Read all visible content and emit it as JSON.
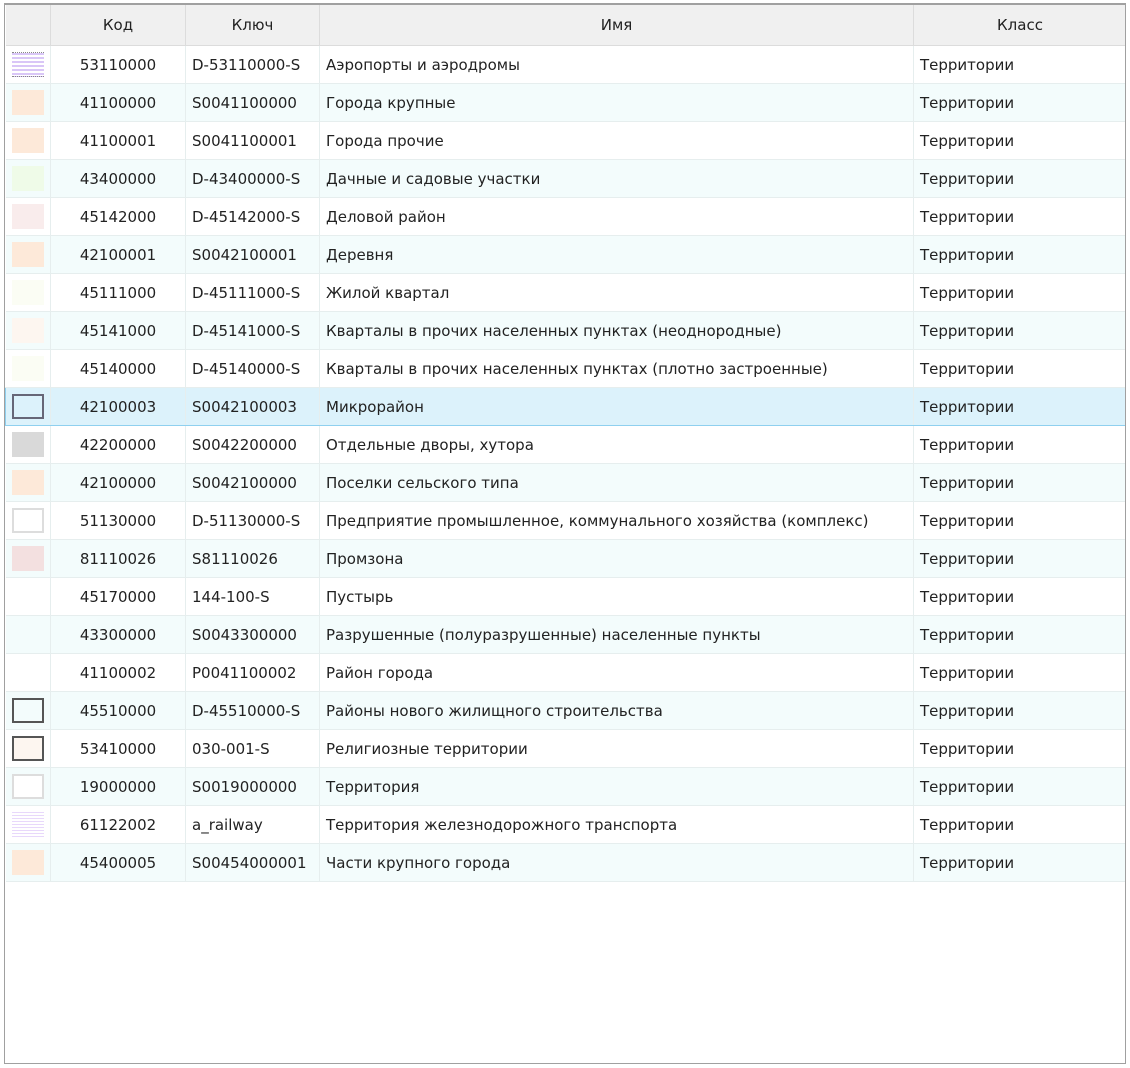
{
  "columns": [
    "",
    "Код",
    "Ключ",
    "Имя",
    "Класс"
  ],
  "selected_index": 9,
  "rows": [
    {
      "code": "53110000",
      "key": "D-53110000-S",
      "name": "Аэропорты и аэродромы",
      "class": "Территории",
      "swatch": "dots"
    },
    {
      "code": "41100000",
      "key": "S0041100000",
      "name": "Города крупные",
      "class": "Территории",
      "swatch": "#fde9d9"
    },
    {
      "code": "41100001",
      "key": "S0041100001",
      "name": "Города прочие",
      "class": "Территории",
      "swatch": "#fde9d9"
    },
    {
      "code": "43400000",
      "key": "D-43400000-S",
      "name": "Дачные и садовые участки",
      "class": "Территории",
      "swatch": "#effbe8"
    },
    {
      "code": "45142000",
      "key": "D-45142000-S",
      "name": "Деловой район",
      "class": "Территории",
      "swatch": "#f9ecec"
    },
    {
      "code": "42100001",
      "key": "S0042100001",
      "name": "Деревня",
      "class": "Территории",
      "swatch": "#fde9d9"
    },
    {
      "code": "45111000",
      "key": "D-45111000-S",
      "name": "Жилой квартал",
      "class": "Территории",
      "swatch": "#fbfdf4"
    },
    {
      "code": "45141000",
      "key": "D-45141000-S",
      "name": "Кварталы в прочих населенных пунктах (неоднородные)",
      "class": "Территории",
      "swatch": "#fdf6f0"
    },
    {
      "code": "45140000",
      "key": "D-45140000-S",
      "name": "Кварталы в прочих населенных пунктах (плотно застроенные)",
      "class": "Территории",
      "swatch": "#fbfdf4"
    },
    {
      "code": "42100003",
      "key": "S0042100003",
      "name": "Микрорайон",
      "class": "Территории",
      "swatch": "#dcf2fb",
      "border": "#667"
    },
    {
      "code": "42200000",
      "key": "S0042200000",
      "name": "Отдельные дворы, хутора",
      "class": "Территории",
      "swatch": "#d9d9d9"
    },
    {
      "code": "42100000",
      "key": "S0042100000",
      "name": "Поселки сельского типа",
      "class": "Территории",
      "swatch": "#fde9d9"
    },
    {
      "code": "51130000",
      "key": "D-51130000-S",
      "name": "Предприятие промышленное, коммунального хозяйства (комплекс)",
      "class": "Территории",
      "swatch": "#ffffff",
      "border": "#ddd"
    },
    {
      "code": "81110026",
      "key": "S81110026",
      "name": "Промзона",
      "class": "Территории",
      "swatch": "#f3e0e0"
    },
    {
      "code": "45170000",
      "key": "144-100-S",
      "name": "Пустырь",
      "class": "Территории",
      "swatch": ""
    },
    {
      "code": "43300000",
      "key": "S0043300000",
      "name": "Разрушенные (полуразрушенные) населенные пункты",
      "class": "Территории",
      "swatch": ""
    },
    {
      "code": "41100002",
      "key": "P0041100002",
      "name": "Район города",
      "class": "Территории",
      "swatch": ""
    },
    {
      "code": "45510000",
      "key": "D-45510000-S",
      "name": "Районы нового жилищного строительства",
      "class": "Территории",
      "swatch": "#f3fcfc",
      "border": "#555"
    },
    {
      "code": "53410000",
      "key": "030-001-S",
      "name": "Религиозные территории",
      "class": "Территории",
      "swatch": "#fdf6f0",
      "border": "#555"
    },
    {
      "code": "19000000",
      "key": "S0019000000",
      "name": "Территория",
      "class": "Территории",
      "swatch": "#ffffff",
      "border": "#ddd"
    },
    {
      "code": "61122002",
      "key": "a_railway",
      "name": "Территория железнодорожного транспорта",
      "class": "Территории",
      "swatch": "lines"
    },
    {
      "code": "45400005",
      "key": "S00454000001",
      "name": "Части крупного города",
      "class": "Территории",
      "swatch": "#fde9d9"
    }
  ]
}
